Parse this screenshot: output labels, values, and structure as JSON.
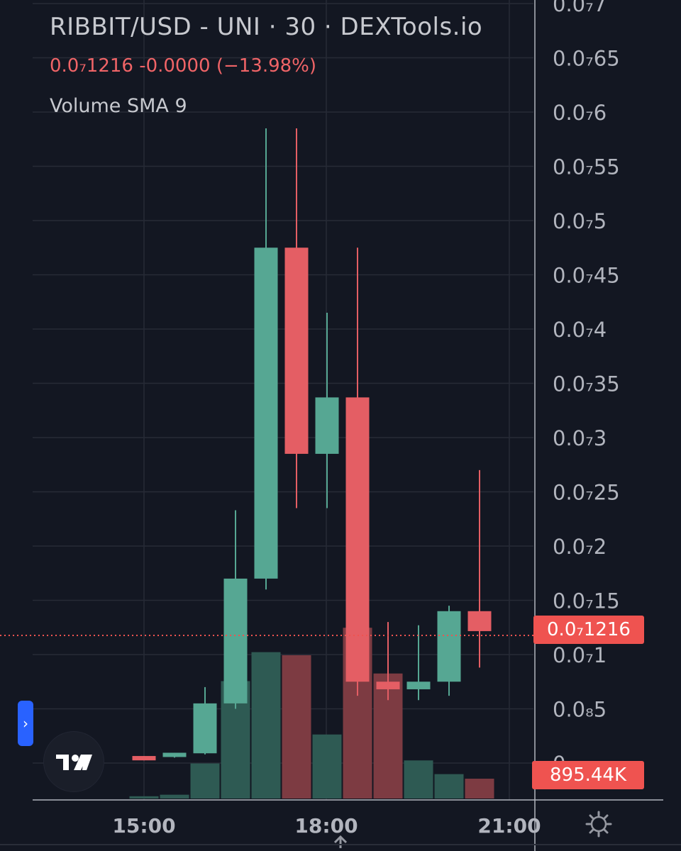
{
  "header": {
    "title": "RIBBIT/USD - UNI · 30 · DEXTools.io",
    "price_change": "0.0₇1216 -0.0000 (−13.98%)",
    "indicator": "Volume SMA 9"
  },
  "price_label": "0.0₇1216",
  "volume_label": "895.44K",
  "icons": {
    "side_panel": "chevron-right-icon",
    "logo": "tradingview-logo",
    "settings": "gear-icon",
    "scroll": "arrow-up-icon"
  },
  "colors": {
    "up": "#56a793",
    "down": "#e45e64",
    "up_vol": "#2e5a53",
    "down_vol": "#7d3b42",
    "background": "#131722",
    "grid": "#272b36",
    "text": "#b2b5be"
  },
  "chart_data": {
    "type": "candlestick",
    "unit_note": "prices in units of 1e-8 (0.0₇X notation)",
    "y_axis_labels": [
      "0.0₇7",
      "0.0₇65",
      "0.0₇6",
      "0.0₇55",
      "0.0₇5",
      "0.0₇45",
      "0.0₇4",
      "0.0₇35",
      "0.0₇3",
      "0.0₇25",
      "0.0₇2",
      "0.0₇15",
      "0.0₇1",
      "0.0₈5",
      "0"
    ],
    "y_ticks": [
      0.7,
      0.65,
      0.6,
      0.55,
      0.5,
      0.45,
      0.4,
      0.35,
      0.3,
      0.25,
      0.2,
      0.15,
      0.1,
      0.05,
      0.0
    ],
    "ylim": [
      0.0,
      0.7
    ],
    "x_axis_labels": [
      "15:00",
      "18:00",
      "21:00"
    ],
    "last_price": 0.1216,
    "candles": [
      {
        "time": "15:00",
        "open": 0.0065,
        "high": 0.0065,
        "low": 0.0025,
        "close": 0.0025
      },
      {
        "time": "15:30",
        "open": 0.0065,
        "high": 0.008,
        "low": 0.005,
        "close": 0.0095
      },
      {
        "time": "16:00",
        "open": 0.009,
        "high": 0.07,
        "low": 0.008,
        "close": 0.055
      },
      {
        "time": "16:30",
        "open": 0.055,
        "high": 0.233,
        "low": 0.05,
        "close": 0.17
      },
      {
        "time": "17:00",
        "open": 0.17,
        "high": 0.585,
        "low": 0.16,
        "close": 0.475
      },
      {
        "time": "17:30",
        "open": 0.475,
        "high": 0.585,
        "low": 0.235,
        "close": 0.285
      },
      {
        "time": "18:00",
        "open": 0.285,
        "high": 0.415,
        "low": 0.235,
        "close": 0.337
      },
      {
        "time": "18:30",
        "open": 0.337,
        "high": 0.475,
        "low": 0.062,
        "close": 0.075
      },
      {
        "time": "19:00",
        "open": 0.075,
        "high": 0.13,
        "low": 0.058,
        "close": 0.068
      },
      {
        "time": "19:30",
        "open": 0.068,
        "high": 0.127,
        "low": 0.058,
        "close": 0.075
      },
      {
        "time": "20:00",
        "open": 0.075,
        "high": 0.145,
        "low": 0.062,
        "close": 0.14
      },
      {
        "time": "20:30",
        "open": 0.14,
        "high": 0.27,
        "low": 0.088,
        "close": 0.1216
      }
    ],
    "volume_max_value": 895440,
    "volume_relative": [
      0.015,
      0.025,
      0.23,
      0.77,
      0.96,
      0.94,
      0.42,
      1.12,
      0.82,
      0.25,
      0.16,
      0.13
    ],
    "volume_direction": [
      "up",
      "up",
      "up",
      "up",
      "up",
      "down",
      "up",
      "down",
      "down",
      "up",
      "up",
      "down"
    ]
  }
}
